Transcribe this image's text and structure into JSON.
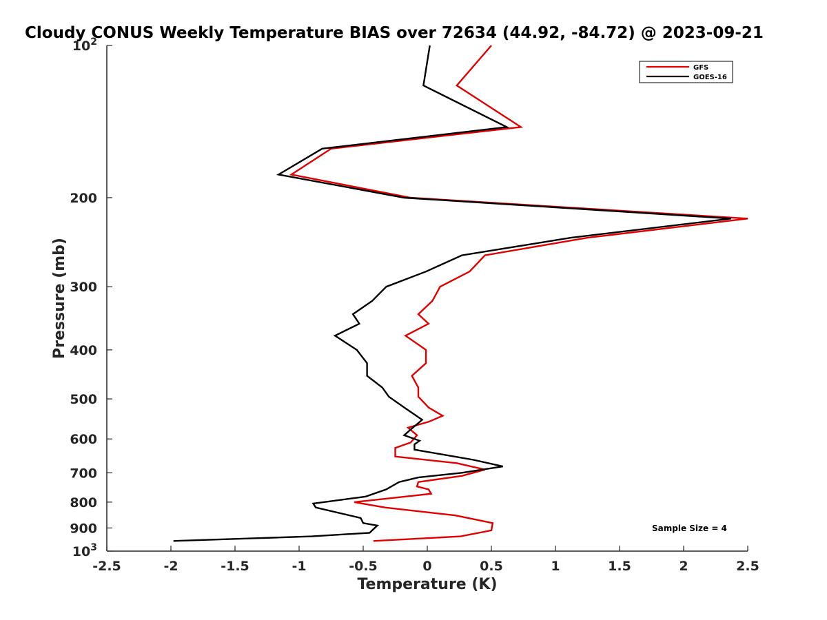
{
  "chart_data": {
    "type": "line",
    "title": "Cloudy CONUS Weekly Temperature BIAS over 72634 (44.92, -84.72) @ 2023-09-21",
    "xlabel": "Temperature (K)",
    "ylabel": "Pressure (mb)",
    "xlim": [
      -2.5,
      2.5
    ],
    "ylim": [
      100,
      1000
    ],
    "y_scale": "log",
    "y_reversed": true,
    "grid": false,
    "legend_position": "top-right",
    "x_ticks": [
      "-2.5",
      "-2",
      "-1.5",
      "-1",
      "-0.5",
      "0",
      "0.5",
      "1",
      "1.5",
      "2",
      "2.5"
    ],
    "y_ticks": [
      {
        "value": 100,
        "base": "10",
        "exp": "2"
      },
      {
        "value": 200,
        "label": "200"
      },
      {
        "value": 300,
        "label": "300"
      },
      {
        "value": 400,
        "label": "400"
      },
      {
        "value": 500,
        "label": "500"
      },
      {
        "value": 600,
        "label": "600"
      },
      {
        "value": 700,
        "label": "700"
      },
      {
        "value": 800,
        "label": "800"
      },
      {
        "value": 900,
        "label": "900"
      },
      {
        "value": 1000,
        "base": "10",
        "exp": "3"
      }
    ],
    "annotation": "Sample Size = 4",
    "series": [
      {
        "name": "GFS",
        "color": "#e00000",
        "x": [
          0.5,
          0.23,
          0.73,
          -0.75,
          -1.06,
          -0.13,
          2.5,
          1.25,
          0.45,
          0.33,
          0.1,
          0.04,
          -0.07,
          0.01,
          -0.17,
          -0.01,
          -0.01,
          -0.12,
          -0.07,
          -0.07,
          0.01,
          0.12,
          0.01,
          -0.15,
          -0.08,
          -0.13,
          -0.25,
          -0.25,
          0.23,
          0.45,
          0.27,
          -0.07,
          -0.08,
          0.01,
          0.03,
          -0.17,
          -0.57,
          -0.33,
          0.22,
          0.51,
          0.5,
          0.26,
          -0.42
        ],
        "y": [
          100,
          120,
          145,
          160,
          180,
          200,
          220,
          240,
          260,
          280,
          300,
          320,
          340,
          355,
          375,
          400,
          425,
          450,
          475,
          495,
          520,
          540,
          555,
          570,
          590,
          610,
          625,
          650,
          670,
          690,
          710,
          730,
          745,
          755,
          770,
          780,
          800,
          820,
          850,
          880,
          910,
          935,
          955
        ]
      },
      {
        "name": "GOES-16",
        "color": "#000000",
        "x": [
          0.02,
          -0.03,
          0.62,
          -0.82,
          -1.16,
          -0.18,
          2.37,
          1.12,
          0.27,
          -0.01,
          -0.32,
          -0.43,
          -0.58,
          -0.53,
          -0.72,
          -0.55,
          -0.47,
          -0.47,
          -0.35,
          -0.3,
          -0.18,
          -0.04,
          -0.13,
          -0.18,
          -0.06,
          -0.1,
          -0.1,
          0.36,
          0.59,
          0.27,
          -0.07,
          -0.22,
          -0.32,
          -0.48,
          -0.89,
          -0.87,
          -0.52,
          -0.5,
          -0.39,
          -0.45,
          -0.9,
          -1.98
        ],
        "y": [
          100,
          120,
          145,
          160,
          180,
          200,
          220,
          240,
          260,
          280,
          300,
          320,
          340,
          355,
          375,
          400,
          425,
          450,
          475,
          495,
          520,
          550,
          575,
          590,
          605,
          615,
          630,
          660,
          680,
          700,
          715,
          730,
          755,
          780,
          805,
          820,
          860,
          880,
          890,
          920,
          935,
          955
        ]
      }
    ]
  }
}
